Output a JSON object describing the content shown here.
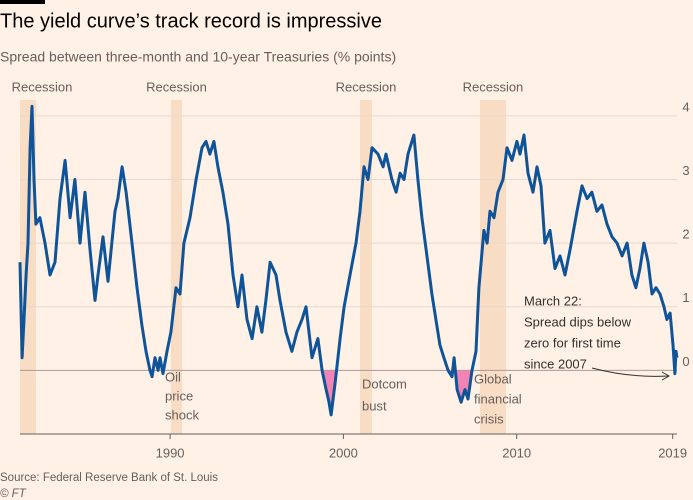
{
  "chart_data": {
    "type": "line",
    "title": "The yield curve’s track record is impressive",
    "subtitle": "Spread between three-month and 10-year Treasuries (% points)",
    "source": "Source: Federal Reserve Bank of St. Louis",
    "credit": "© FT",
    "xlim": [
      1981.34,
      2019.25
    ],
    "xticks": [
      1990,
      2000,
      2010,
      2019
    ],
    "ylim": [
      -1,
      4.25
    ],
    "yticks": [
      0,
      1,
      2,
      3,
      4
    ],
    "grid": true,
    "x": [
      1981.34,
      1981.46,
      1981.57,
      1981.69,
      1981.8,
      1981.92,
      1982.03,
      1982.15,
      1982.26,
      1982.49,
      1982.78,
      1983.07,
      1983.36,
      1983.65,
      1983.94,
      1984.23,
      1984.51,
      1984.8,
      1985.09,
      1985.38,
      1985.67,
      1985.84,
      1986.13,
      1986.42,
      1986.82,
      1986.99,
      1987.23,
      1987.46,
      1987.8,
      1988.09,
      1988.38,
      1988.61,
      1988.84,
      1988.96,
      1989.13,
      1989.31,
      1989.42,
      1989.59,
      1989.82,
      1990.05,
      1990.34,
      1990.57,
      1990.8,
      1991.15,
      1991.5,
      1991.84,
      1992.07,
      1992.3,
      1992.53,
      1992.76,
      1993.05,
      1993.34,
      1993.63,
      1993.92,
      1994.15,
      1994.44,
      1994.73,
      1995.01,
      1995.3,
      1995.53,
      1995.77,
      1996.11,
      1996.34,
      1996.69,
      1997.03,
      1997.32,
      1997.61,
      1997.84,
      1998.19,
      1998.53,
      1998.77,
      1999.0,
      1999.17,
      1999.29,
      1999.52,
      1999.81,
      2000.04,
      2000.38,
      2000.73,
      2000.96,
      2001.19,
      2001.42,
      2001.65,
      2002.0,
      2002.29,
      2002.46,
      2002.8,
      2003.04,
      2003.27,
      2003.5,
      2003.73,
      2004.07,
      2004.3,
      2004.53,
      2004.77,
      2005.11,
      2005.34,
      2005.57,
      2005.8,
      2006.04,
      2006.27,
      2006.39,
      2006.56,
      2006.79,
      2007.02,
      2007.19,
      2007.42,
      2007.65,
      2007.82,
      2008.11,
      2008.29,
      2008.46,
      2008.69,
      2008.92,
      2009.21,
      2009.44,
      2009.73,
      2010.01,
      2010.19,
      2010.42,
      2010.65,
      2010.94,
      2011.17,
      2011.4,
      2011.63,
      2011.92,
      2012.21,
      2012.5,
      2012.79,
      2013.08,
      2013.48,
      2013.77,
      2014.06,
      2014.34,
      2014.63,
      2014.92,
      2015.21,
      2015.5,
      2015.79,
      2016.08,
      2016.37,
      2016.65,
      2016.88,
      2017.11,
      2017.34,
      2017.58,
      2017.81,
      2018.04,
      2018.27,
      2018.5,
      2018.67,
      2018.85,
      2019.02,
      2019.13,
      2019.19,
      2019.25
    ],
    "series": [
      {
        "name": "Spread",
        "color": "#0f5499",
        "values": [
          1.7,
          0.2,
          0.8,
          1.5,
          2.0,
          3.5,
          4.15,
          3.0,
          2.3,
          2.4,
          2.0,
          1.5,
          1.7,
          2.7,
          3.3,
          2.4,
          3.0,
          2.0,
          2.8,
          1.9,
          1.1,
          1.5,
          2.1,
          1.4,
          2.5,
          2.7,
          3.2,
          2.8,
          2.0,
          1.3,
          0.7,
          0.3,
          0.0,
          -0.1,
          0.2,
          0.0,
          0.2,
          -0.05,
          0.3,
          0.6,
          1.3,
          1.2,
          2.0,
          2.4,
          3.0,
          3.5,
          3.6,
          3.4,
          3.6,
          3.2,
          2.8,
          2.3,
          1.5,
          1.0,
          1.5,
          0.8,
          0.5,
          1.0,
          0.6,
          1.1,
          1.7,
          1.5,
          1.1,
          0.6,
          0.3,
          0.6,
          0.8,
          1.0,
          0.2,
          0.5,
          0.0,
          -0.3,
          -0.5,
          -0.7,
          -0.2,
          0.5,
          1.0,
          1.5,
          2.0,
          2.5,
          3.2,
          3.0,
          3.5,
          3.4,
          3.2,
          3.4,
          3.0,
          2.8,
          3.1,
          3.0,
          3.4,
          3.7,
          3.0,
          2.4,
          1.9,
          1.2,
          0.8,
          0.4,
          0.2,
          0.0,
          -0.1,
          0.2,
          -0.3,
          -0.5,
          -0.3,
          -0.45,
          0.0,
          0.3,
          1.3,
          2.2,
          2.0,
          2.5,
          2.4,
          2.8,
          3.0,
          3.5,
          3.3,
          3.6,
          3.4,
          3.7,
          3.1,
          2.8,
          3.2,
          2.9,
          2.0,
          2.2,
          1.6,
          1.8,
          1.5,
          1.9,
          2.5,
          2.9,
          2.7,
          2.8,
          2.5,
          2.6,
          2.3,
          2.1,
          2.0,
          1.8,
          2.0,
          1.5,
          1.3,
          1.6,
          2.0,
          1.7,
          1.2,
          1.3,
          1.2,
          1.0,
          0.8,
          0.9,
          0.4,
          -0.05,
          0.3,
          0.2
        ]
      }
    ],
    "negative_color": "#f283b5",
    "recessions": [
      {
        "label": "Recession",
        "start": 1981.34,
        "end": 1982.26
      },
      {
        "label": "Recession",
        "start": 1990.05,
        "end": 1990.69
      },
      {
        "label": "Recession",
        "start": 2000.96,
        "end": 2001.65
      },
      {
        "label": "Recession",
        "start": 2007.88,
        "end": 2009.38
      }
    ],
    "recession_color": "#f9dcc4",
    "annotations": [
      {
        "lines": [
          "Oil",
          "price",
          "shock"
        ]
      },
      {
        "lines": [
          "Dotcom",
          "bust"
        ]
      },
      {
        "lines": [
          "Global",
          "financial",
          "crisis"
        ]
      },
      {
        "lines": [
          "March 22:",
          "Spread dips below",
          "zero for first time",
          "since 2007"
        ]
      }
    ]
  }
}
